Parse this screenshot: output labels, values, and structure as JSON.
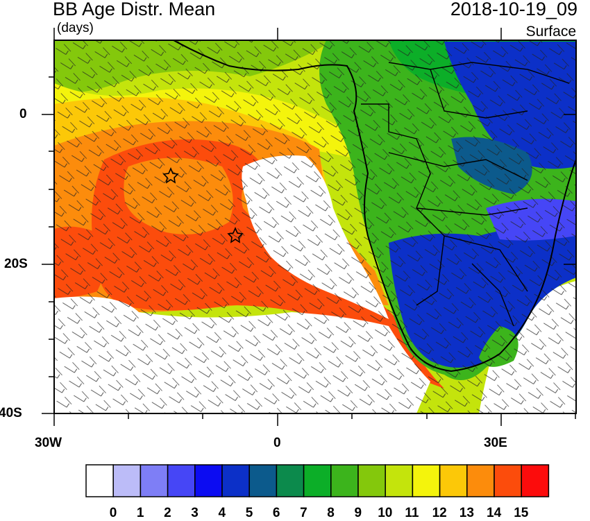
{
  "header": {
    "title": "BB Age Distr. Mean",
    "units": "(days)",
    "date": "2018-10-19_09",
    "level": "Surface"
  },
  "axes": {
    "y_labels": [
      "0",
      "20S",
      "40S"
    ],
    "x_labels": [
      "30W",
      "0",
      "30E"
    ]
  },
  "colorbar": {
    "labels": [
      "0",
      "1",
      "2",
      "3",
      "4",
      "5",
      "6",
      "7",
      "8",
      "9",
      "10",
      "11",
      "12",
      "13",
      "14",
      "15"
    ],
    "colors": [
      "#ffffff",
      "#bcbcf8",
      "#7e7ef6",
      "#4646f6",
      "#0c0cf2",
      "#0c30c8",
      "#0c5a8c",
      "#0c8a4c",
      "#0cae28",
      "#3cb41c",
      "#84c80c",
      "#c4e40c",
      "#f4f40c",
      "#fcc808",
      "#fc8c0c",
      "#fc4c0c",
      "#fc0c0c"
    ]
  },
  "markers": {
    "stars": [
      "star-marker-1",
      "star-marker-2"
    ]
  }
}
